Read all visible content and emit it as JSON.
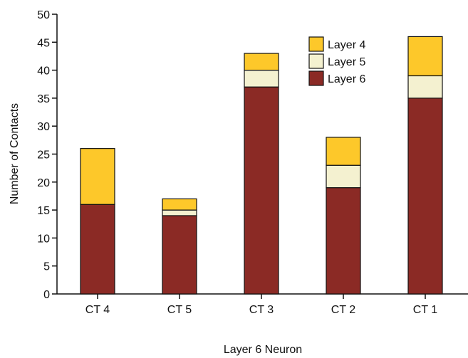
{
  "chart_data": {
    "type": "bar",
    "stacked": true,
    "title": "",
    "xlabel": "Layer 6 Neuron",
    "ylabel": "Number of Contacts",
    "ylim": [
      0,
      50
    ],
    "yticks": [
      0,
      5,
      10,
      15,
      20,
      25,
      30,
      35,
      40,
      45,
      50
    ],
    "categories": [
      "CT 4",
      "CT 5",
      "CT 3",
      "CT 2",
      "CT 1"
    ],
    "series": [
      {
        "name": "Layer 6",
        "color": "#8b2a25",
        "values": [
          16,
          14,
          37,
          19,
          35
        ]
      },
      {
        "name": "Layer 5",
        "color": "#f4f1d0",
        "values": [
          0,
          1,
          3,
          4,
          4
        ]
      },
      {
        "name": "Layer 4",
        "color": "#fdc82a",
        "values": [
          10,
          2,
          3,
          5,
          7
        ]
      }
    ],
    "legend": {
      "position": "top-right",
      "order": [
        "Layer 4",
        "Layer 5",
        "Layer 6"
      ]
    },
    "grid": false
  }
}
